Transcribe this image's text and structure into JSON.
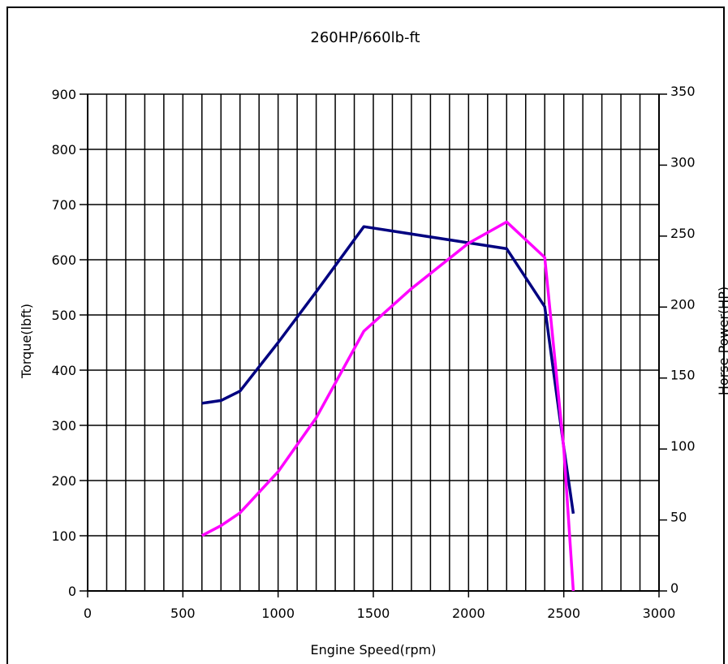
{
  "chart_data": {
    "type": "line",
    "title": "260HP/660lb-ft",
    "xlabel": "Engine Speed(rpm)",
    "ylabel": "Torque(lbft)",
    "y2label": "Horse Power(HP)",
    "xlim": [
      0,
      3000
    ],
    "ylim": [
      0,
      900
    ],
    "y2lim": [
      0,
      350
    ],
    "xticks": [
      "0",
      "500",
      "1000",
      "1500",
      "2000",
      "2500",
      "3000"
    ],
    "yticks": [
      "0",
      "100",
      "200",
      "300",
      "400",
      "500",
      "600",
      "700",
      "800",
      "900"
    ],
    "y2ticks": [
      "0",
      "50",
      "100",
      "150",
      "200",
      "250",
      "300",
      "350"
    ],
    "grid": true,
    "series": [
      {
        "axis": "left",
        "color": "#000080",
        "points": [
          [
            600,
            340
          ],
          [
            700,
            345
          ],
          [
            800,
            362
          ],
          [
            1000,
            450
          ],
          [
            1200,
            542
          ],
          [
            1450,
            660
          ],
          [
            2200,
            620
          ],
          [
            2400,
            515
          ],
          [
            2500,
            260
          ],
          [
            2550,
            140
          ]
        ]
      },
      {
        "axis": "right",
        "color": "#ff00ff",
        "points": [
          [
            600,
            39
          ],
          [
            700,
            46
          ],
          [
            800,
            55
          ],
          [
            1000,
            84
          ],
          [
            1200,
            122
          ],
          [
            1450,
            183
          ],
          [
            1700,
            213
          ],
          [
            2000,
            245
          ],
          [
            2200,
            260
          ],
          [
            2400,
            235
          ],
          [
            2500,
            100
          ],
          [
            2550,
            0
          ]
        ]
      }
    ]
  }
}
